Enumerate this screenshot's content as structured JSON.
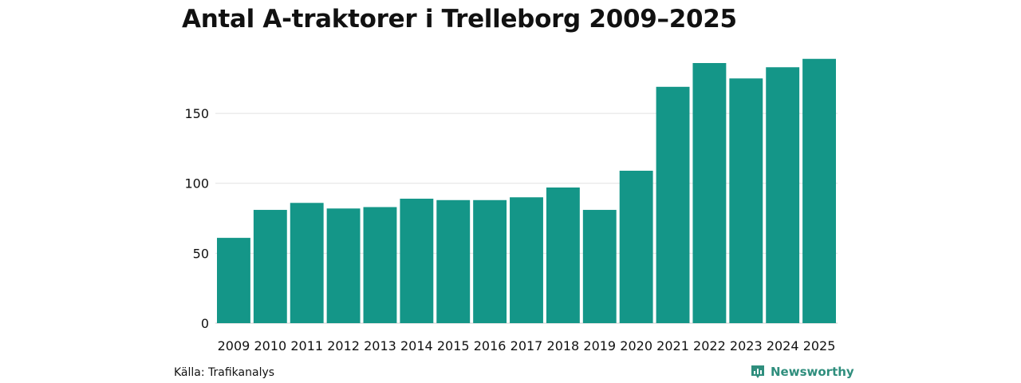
{
  "chart_data": {
    "type": "bar",
    "title": "Antal A-traktorer i Trelleborg 2009–2025",
    "xlabel": "",
    "ylabel": "",
    "categories": [
      "2009",
      "2010",
      "2011",
      "2012",
      "2013",
      "2014",
      "2015",
      "2016",
      "2017",
      "2018",
      "2019",
      "2020",
      "2021",
      "2022",
      "2023",
      "2024",
      "2025"
    ],
    "values": [
      61,
      81,
      86,
      82,
      83,
      89,
      88,
      88,
      90,
      97,
      81,
      109,
      169,
      186,
      175,
      183,
      189
    ],
    "ylim": [
      0,
      190
    ],
    "yticks": [
      0,
      50,
      100,
      150
    ],
    "grid": true,
    "legend": "none",
    "bar_color": "#149688",
    "grid_color": "#e2e2e2"
  },
  "footer": {
    "source": "Källa: Trafikanalys",
    "brand": "Newsworthy",
    "brand_color": "#2f8e7d",
    "brand_icon": "bar-chart-icon"
  }
}
